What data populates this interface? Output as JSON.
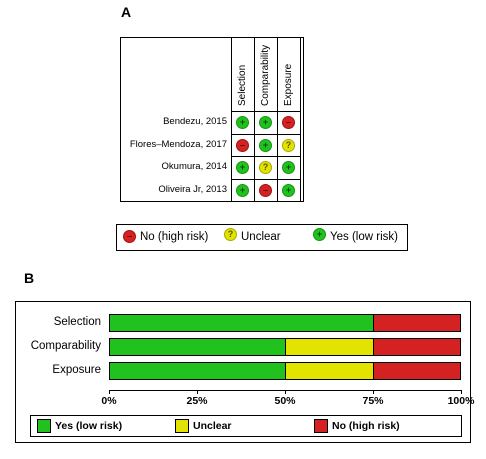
{
  "panel_a": {
    "label": "A",
    "domains": [
      "Selection",
      "Comparability",
      "Exposure"
    ],
    "studies": [
      {
        "name": "Bendezu, 2015",
        "ratings": [
          "low",
          "low",
          "high"
        ]
      },
      {
        "name": "Flores–Mendoza, 2017",
        "ratings": [
          "high",
          "low",
          "unclear"
        ]
      },
      {
        "name": "Okumura, 2014",
        "ratings": [
          "low",
          "unclear",
          "low"
        ]
      },
      {
        "name": "Oliveira Jr, 2013",
        "ratings": [
          "low",
          "high",
          "low"
        ]
      }
    ],
    "symbols": {
      "low": "+",
      "high": "–",
      "unclear": "?"
    },
    "legend": {
      "high": "No (high risk)",
      "unclear": "Unclear",
      "low": "Yes (low risk)"
    }
  },
  "panel_b": {
    "label": "B",
    "legend": {
      "low": "Yes (low risk)",
      "unclear": "Unclear",
      "high": "No (high risk)"
    }
  },
  "colors": {
    "low": "#21c21d",
    "unclear": "#e3e300",
    "high": "#d42121"
  },
  "chart_data": {
    "type": "bar",
    "orientation": "horizontal",
    "stacked": true,
    "categories": [
      "Selection",
      "Comparability",
      "Exposure"
    ],
    "series": [
      {
        "name": "Yes (low risk)",
        "values": [
          75,
          50,
          50
        ]
      },
      {
        "name": "Unclear",
        "values": [
          0,
          25,
          25
        ]
      },
      {
        "name": "No (high risk)",
        "values": [
          25,
          25,
          25
        ]
      }
    ],
    "xlim": [
      0,
      100
    ],
    "x_ticks": [
      "0%",
      "25%",
      "50%",
      "75%",
      "100%"
    ],
    "grid": false,
    "legend_position": "bottom"
  }
}
